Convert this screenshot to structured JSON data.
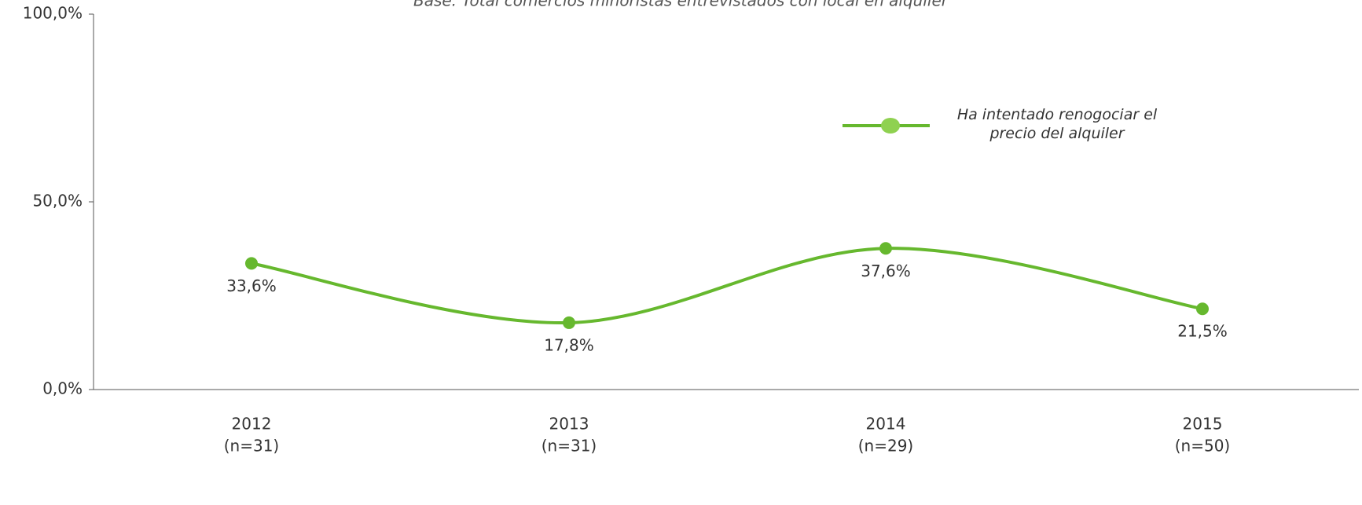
{
  "chart_data": {
    "type": "line",
    "subtitle": "Base: Total comercios minoristas entrevistados con local en alquiler",
    "categories": [
      [
        "2012",
        "(n=31)"
      ],
      [
        "2013",
        "(n=31)"
      ],
      [
        "2014",
        "(n=29)"
      ],
      [
        "2015",
        "(n=50)"
      ]
    ],
    "series": [
      {
        "name": "Ha intentado renogociar el precio del alquiler",
        "color": "#66b82e",
        "values": [
          33.6,
          17.8,
          37.6,
          21.5
        ],
        "value_labels": [
          "33,6%",
          "17,8%",
          "37,6%",
          "21,5%"
        ]
      }
    ],
    "ylim": [
      0,
      100
    ],
    "yticks": [
      {
        "value": 0,
        "label": "0,0%"
      },
      {
        "value": 50,
        "label": "50,0%"
      },
      {
        "value": 100,
        "label": "100,0%"
      }
    ],
    "grid": false,
    "smooth": true,
    "legend": "upper right"
  }
}
